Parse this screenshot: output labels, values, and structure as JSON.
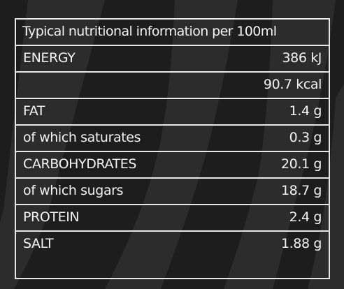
{
  "table": {
    "header": "Typical nutritional information per 100ml",
    "rows": [
      {
        "name": "ENERGY",
        "value": "386 kJ"
      },
      {
        "name": "",
        "value": "90.7 kcal"
      },
      {
        "name": "FAT",
        "value": "1.4 g"
      },
      {
        "name": "of which saturates",
        "value": "0.3 g"
      },
      {
        "name": "CARBOHYDRATES",
        "value": "20.1 g"
      },
      {
        "name": "of which sugars",
        "value": "18.7 g"
      },
      {
        "name": "PROTEIN",
        "value": "2.4 g"
      },
      {
        "name": "SALT",
        "value": "1.88 g"
      }
    ]
  },
  "colors": {
    "background": "#1d1d1d",
    "stripe": "#2c2c2c",
    "border": "#e6e6e6",
    "text": "#f2f2f2"
  }
}
